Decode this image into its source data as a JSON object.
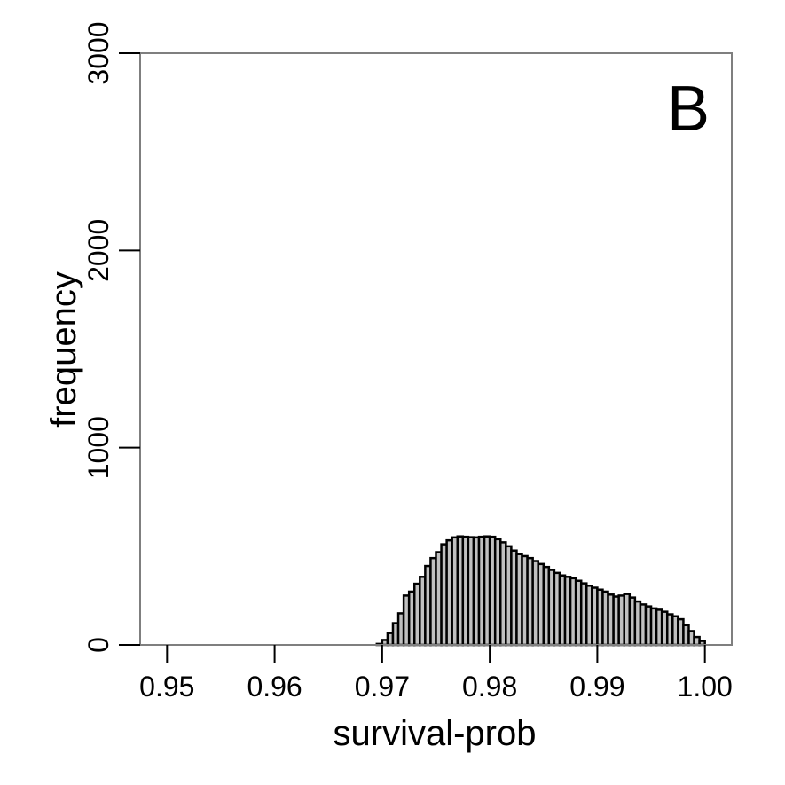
{
  "chart_data": {
    "type": "bar",
    "panel_label": "B",
    "xlabel": "survival-prob",
    "ylabel": "frequency",
    "xlim": [
      0.9475,
      1.0025
    ],
    "ylim": [
      0,
      3000
    ],
    "xticks": [
      0.95,
      0.96,
      0.97,
      0.98,
      0.99,
      1.0
    ],
    "xtick_labels": [
      "0.95",
      "0.96",
      "0.97",
      "0.98",
      "0.99",
      "1.00"
    ],
    "yticks": [
      0,
      1000,
      2000,
      3000
    ],
    "ytick_labels": [
      "0",
      "1000",
      "2000",
      "3000"
    ],
    "bin_width": 0.0005,
    "bins_start": [
      0.9695,
      0.97,
      0.9705,
      0.971,
      0.9715,
      0.972,
      0.9725,
      0.973,
      0.9735,
      0.974,
      0.9745,
      0.975,
      0.9755,
      0.976,
      0.9765,
      0.977,
      0.9775,
      0.978,
      0.9785,
      0.979,
      0.9795,
      0.98,
      0.9805,
      0.981,
      0.9815,
      0.982,
      0.9825,
      0.983,
      0.9835,
      0.984,
      0.9845,
      0.985,
      0.9855,
      0.986,
      0.9865,
      0.987,
      0.9875,
      0.988,
      0.9885,
      0.989,
      0.9895,
      0.99,
      0.9905,
      0.991,
      0.9915,
      0.992,
      0.9925,
      0.993,
      0.9935,
      0.994,
      0.9945,
      0.995,
      0.9955,
      0.996,
      0.9965,
      0.997,
      0.9975,
      0.998,
      0.9985,
      0.999,
      0.9995
    ],
    "values": [
      5,
      25,
      60,
      110,
      160,
      250,
      270,
      310,
      345,
      400,
      440,
      470,
      510,
      530,
      545,
      550,
      548,
      546,
      545,
      548,
      550,
      548,
      536,
      520,
      500,
      478,
      460,
      450,
      440,
      425,
      410,
      395,
      380,
      365,
      352,
      345,
      338,
      325,
      312,
      300,
      290,
      280,
      270,
      255,
      245,
      250,
      258,
      240,
      220,
      205,
      195,
      185,
      178,
      168,
      155,
      145,
      130,
      100,
      70,
      40,
      20
    ],
    "bar_fill": "#c0c0c0",
    "bar_stroke": "#000000",
    "frame_color": "#7f7f7f",
    "grid": false,
    "legend": "none"
  }
}
